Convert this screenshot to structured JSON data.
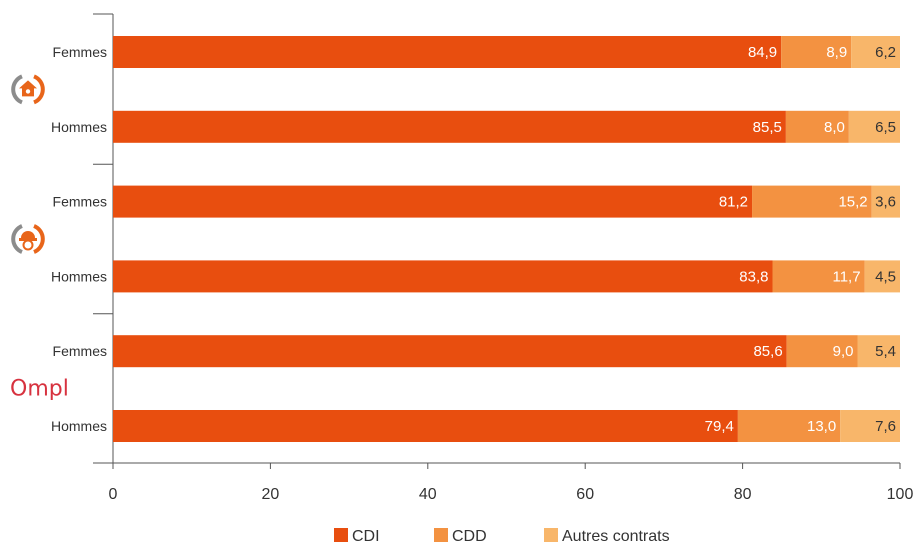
{
  "chart_data": {
    "type": "bar",
    "orientation": "horizontal",
    "stacked": true,
    "categories": [
      "Femmes",
      "Hommes",
      "Femmes",
      "Hommes",
      "Femmes",
      "Hommes"
    ],
    "groups": [
      {
        "logo": "house-logo-icon",
        "rows": [
          0,
          1
        ]
      },
      {
        "logo": "worker-logo-icon",
        "rows": [
          2,
          3
        ]
      },
      {
        "logo": "ompl-logo",
        "logo_text": "Ompl",
        "rows": [
          4,
          5
        ]
      }
    ],
    "series": [
      {
        "name": "CDI",
        "color": "#e84e0f",
        "label_color": "#ffffff",
        "values": [
          84.9,
          85.5,
          81.2,
          83.8,
          85.6,
          79.4
        ],
        "labels": [
          "84,9",
          "85,5",
          "81,2",
          "83,8",
          "85,6",
          "79,4"
        ]
      },
      {
        "name": "CDD",
        "color": "#f39241",
        "label_color": "#ffffff",
        "values": [
          8.9,
          8.0,
          15.2,
          11.7,
          9.0,
          13.0
        ],
        "labels": [
          "8,9",
          "8,0",
          "15,2",
          "11,7",
          "9,0",
          "13,0"
        ]
      },
      {
        "name": "Autres contrats",
        "color": "#f8b66a",
        "label_color": "#333333",
        "values": [
          6.2,
          6.5,
          3.6,
          4.5,
          5.4,
          7.6
        ],
        "labels": [
          "6,2",
          "6,5",
          "3,6",
          "4,5",
          "5,4",
          "7,6"
        ]
      }
    ],
    "xlim": [
      0,
      100
    ],
    "xticks": [
      0,
      20,
      40,
      60,
      80,
      100
    ],
    "xtick_labels": [
      "0",
      "20",
      "40",
      "60",
      "80",
      "100"
    ],
    "grid": false,
    "legend_position": "bottom",
    "logo_colors": {
      "gray": "#8c8c8c",
      "orange": "#e8651a",
      "ompl": "#d7323f"
    }
  }
}
